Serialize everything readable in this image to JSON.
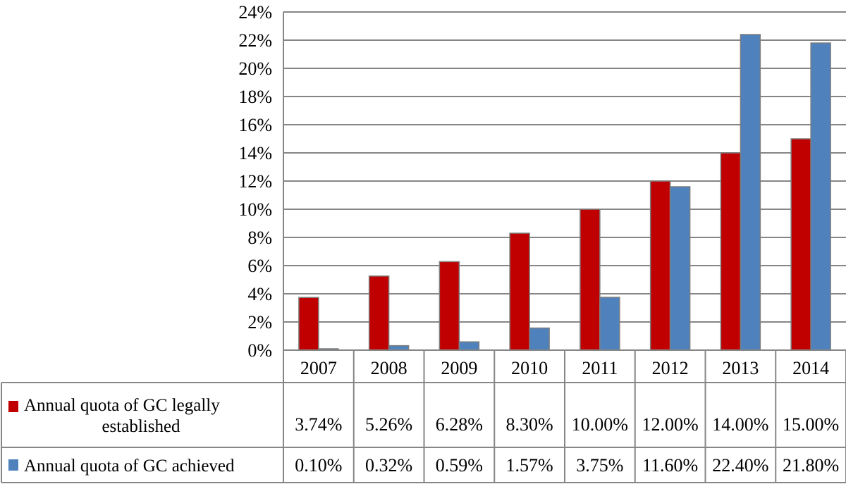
{
  "chart_data": {
    "type": "bar",
    "categories": [
      "2007",
      "2008",
      "2009",
      "2010",
      "2011",
      "2012",
      "2013",
      "2014"
    ],
    "series": [
      {
        "name": "Annual quota of GC legally established",
        "name_lines": [
          "Annual quota of GC legally",
          "established"
        ],
        "values": [
          3.74,
          5.26,
          6.28,
          8.3,
          10.0,
          12.0,
          14.0,
          15.0
        ],
        "labels": [
          "3.74%",
          "5.26%",
          "6.28%",
          "8.30%",
          "10.00%",
          "12.00%",
          "14.00%",
          "15.00%"
        ],
        "color": "#C00000"
      },
      {
        "name": "Annual quota of GC achieved",
        "name_lines": [
          "Annual quota of GC achieved"
        ],
        "values": [
          0.1,
          0.32,
          0.59,
          1.57,
          3.75,
          11.6,
          22.4,
          21.8
        ],
        "labels": [
          "0.10%",
          "0.32%",
          "0.59%",
          "1.57%",
          "3.75%",
          "11.60%",
          "22.40%",
          "21.80%"
        ],
        "color": "#4F81BD"
      }
    ],
    "ylim": [
      0,
      24
    ],
    "yticks": [
      "0%",
      "2%",
      "4%",
      "6%",
      "8%",
      "10%",
      "12%",
      "14%",
      "16%",
      "18%",
      "20%",
      "22%",
      "24%"
    ],
    "grid": true,
    "legend": "data-table"
  }
}
